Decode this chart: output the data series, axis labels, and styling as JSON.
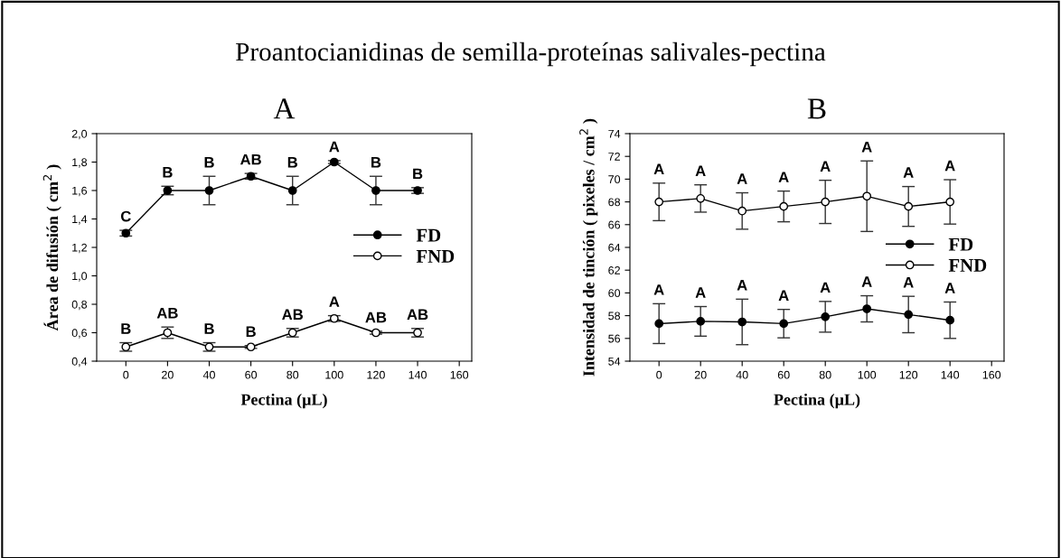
{
  "chart_data": [
    {
      "type": "line",
      "title": "A",
      "xlabel": "Pectina (µL)",
      "ylabel": "Área de difusión ( cm$^{2}$ )",
      "x": [
        0,
        20,
        40,
        60,
        80,
        100,
        120,
        140
      ],
      "xlim": [
        -14,
        166
      ],
      "xticks": [
        0,
        20,
        40,
        60,
        80,
        100,
        120,
        140,
        160
      ],
      "ylim": [
        0.4,
        2.0
      ],
      "yticks": [
        {
          "value": 0.4,
          "label": "0,4"
        },
        {
          "value": 0.6,
          "label": "0,6"
        },
        {
          "value": 0.8,
          "label": "0,8"
        },
        {
          "value": 1.0,
          "label": "1,0"
        },
        {
          "value": 1.2,
          "label": "1,2"
        },
        {
          "value": 1.4,
          "label": "1,4"
        },
        {
          "value": 1.6,
          "label": "1,6"
        },
        {
          "value": 1.8,
          "label": "1,8"
        },
        {
          "value": 2.0,
          "label": "2,0"
        }
      ],
      "series": [
        {
          "name": "FD",
          "color": "#000000",
          "values": [
            1.3,
            1.6,
            1.6,
            1.7,
            1.6,
            1.8,
            1.6,
            1.6
          ],
          "errors": [
            0.02,
            0.03,
            0.1,
            0.02,
            0.1,
            0.01,
            0.1,
            0.02
          ]
        },
        {
          "name": "FND",
          "color": "#000000",
          "values": [
            0.5,
            0.6,
            0.5,
            0.5,
            0.6,
            0.7,
            0.6,
            0.6
          ],
          "errors": [
            0.03,
            0.04,
            0.03,
            0.01,
            0.03,
            0.02,
            0.01,
            0.03
          ]
        }
      ],
      "marker": "circle",
      "legend": "center right",
      "grid": false,
      "annotations": [
        "Proantocianidinas de semilla-proteínas salivales-pectina",
        {
          "text": "C",
          "x": 0,
          "y": 1.3
        },
        {
          "text": "B",
          "x": 20,
          "y": 1.6
        },
        {
          "text": "B",
          "x": 40,
          "y": 1.6
        },
        {
          "text": "AB",
          "x": 60,
          "y": 1.7
        },
        {
          "text": "B",
          "x": 80,
          "y": 1.6
        },
        {
          "text": "A",
          "x": 100,
          "y": 1.8
        },
        {
          "text": "B",
          "x": 120,
          "y": 1.6
        },
        {
          "text": "B",
          "x": 140,
          "y": 1.6
        },
        {
          "text": "B",
          "x": 0,
          "y": 0.5
        },
        {
          "text": "AB",
          "x": 20,
          "y": 0.6
        },
        {
          "text": "B",
          "x": 40,
          "y": 0.5
        },
        {
          "text": "B",
          "x": 60,
          "y": 0.5
        },
        {
          "text": "AB",
          "x": 80,
          "y": 0.6
        },
        {
          "text": "A",
          "x": 100,
          "y": 0.7
        },
        {
          "text": "AB",
          "x": 120,
          "y": 0.6
        },
        {
          "text": "AB",
          "x": 140,
          "y": 0.6
        }
      ]
    },
    {
      "type": "line",
      "title": "B",
      "xlabel": "Pectina (µL)",
      "ylabel": "Intensidad de tinción ( pixeles / cm$^{2}$ )",
      "x": [
        0,
        20,
        40,
        60,
        80,
        100,
        120,
        140
      ],
      "xlim": [
        -14,
        166
      ],
      "xticks": [
        0,
        20,
        40,
        60,
        80,
        100,
        120,
        140,
        160
      ],
      "ylim": [
        54,
        74
      ],
      "yticks": [
        54,
        56,
        58,
        60,
        62,
        64,
        66,
        68,
        70,
        72,
        74
      ],
      "series": [
        {
          "name": "FD",
          "color": "#000000",
          "values": [
            57.3,
            57.5,
            57.45,
            57.3,
            57.9,
            58.6,
            58.1,
            57.6
          ],
          "errors": [
            1.75,
            1.3,
            2.0,
            1.25,
            1.35,
            1.15,
            1.6,
            1.6
          ]
        },
        {
          "name": "FND",
          "color": "#000000",
          "values": [
            68.0,
            68.3,
            67.2,
            67.6,
            68.0,
            68.5,
            67.6,
            68.0
          ],
          "errors": [
            1.65,
            1.2,
            1.6,
            1.35,
            1.9,
            3.1,
            1.75,
            1.95
          ]
        }
      ],
      "marker": "circle",
      "legend": "right",
      "grid": false,
      "annotations": [
        {
          "text": "A",
          "x": 0,
          "y": 57.3
        },
        {
          "text": "A",
          "x": 20,
          "y": 57.5
        },
        {
          "text": "A",
          "x": 40,
          "y": 57.45
        },
        {
          "text": "A",
          "x": 60,
          "y": 57.3
        },
        {
          "text": "A",
          "x": 80,
          "y": 57.9
        },
        {
          "text": "A",
          "x": 100,
          "y": 58.6
        },
        {
          "text": "A",
          "x": 120,
          "y": 58.1
        },
        {
          "text": "A",
          "x": 140,
          "y": 57.6
        },
        {
          "text": "A",
          "x": 0,
          "y": 68.0
        },
        {
          "text": "A",
          "x": 20,
          "y": 68.3
        },
        {
          "text": "A",
          "x": 40,
          "y": 67.2
        },
        {
          "text": "A",
          "x": 60,
          "y": 67.6
        },
        {
          "text": "A",
          "x": 80,
          "y": 68.0
        },
        {
          "text": "A",
          "x": 100,
          "y": 68.5
        },
        {
          "text": "A",
          "x": 120,
          "y": 67.6
        },
        {
          "text": "A",
          "x": 140,
          "y": 68.0
        }
      ]
    }
  ]
}
